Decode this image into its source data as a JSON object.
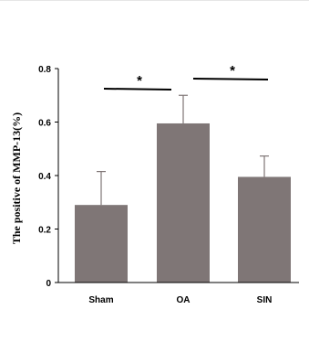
{
  "chart_data": {
    "type": "bar",
    "categories": [
      "Sham",
      "OA",
      "SIN"
    ],
    "values": [
      0.29,
      0.595,
      0.395
    ],
    "errors": [
      0.125,
      0.105,
      0.078
    ],
    "ylabel": "The positive of MMP-13(%)",
    "xlabel": "",
    "ylim": [
      0,
      0.8
    ],
    "yticks": [
      "0",
      "0.2",
      "0.4",
      "0.6",
      "0.8"
    ],
    "grid": false,
    "bar_color": "#7f7676",
    "significance": [
      {
        "from": "Sham",
        "to": "OA",
        "label": "*"
      },
      {
        "from": "OA",
        "to": "SIN",
        "label": "*"
      }
    ]
  }
}
